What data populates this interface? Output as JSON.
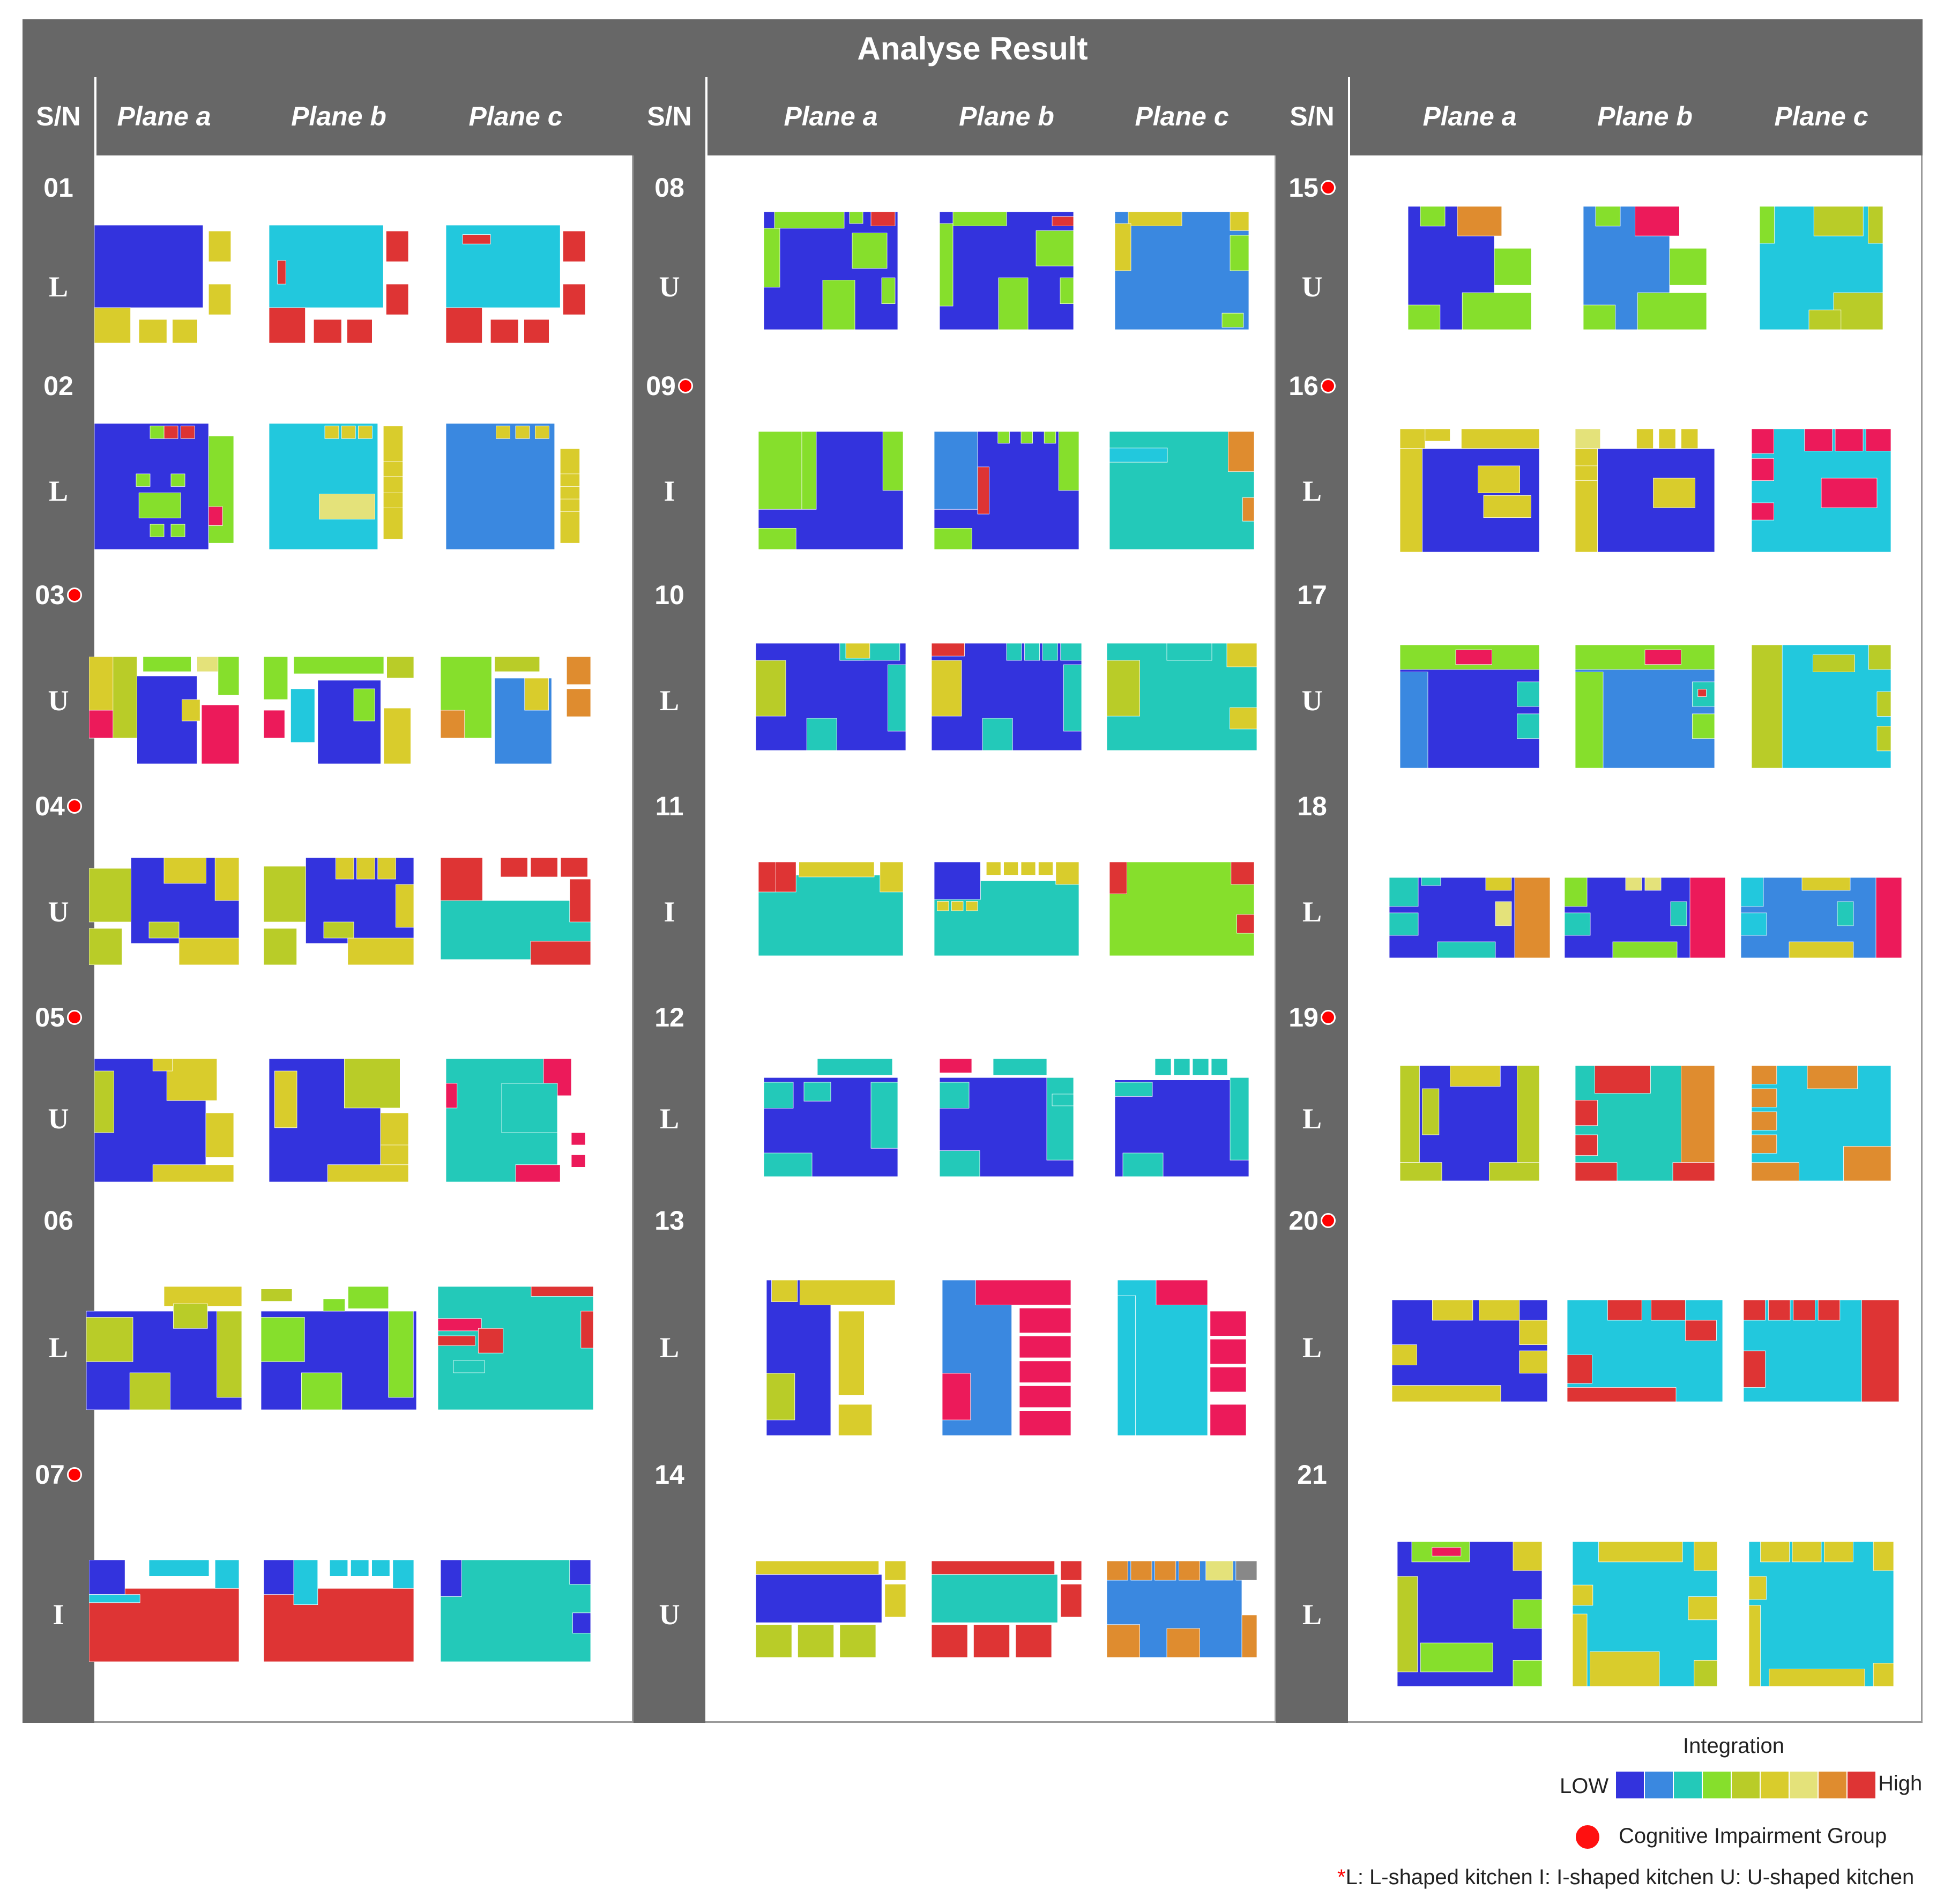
{
  "title": "Analyse Result",
  "headers": {
    "sn": "S/N",
    "plane_a": "Plane a",
    "plane_b": "Plane b",
    "plane_c": "Plane c"
  },
  "colors": {
    "frame": "#676767",
    "scale": [
      "#3333dd",
      "#3a88e0",
      "#23c9b9",
      "#86df2c",
      "#b9cc28",
      "#d9cc2c",
      "#e4e27a",
      "#df8c2f",
      "#de3434"
    ],
    "c1": "#3333dd",
    "c2": "#3a88e0",
    "c3": "#23c9b9",
    "c3b": "#22c8dd",
    "c4": "#86df2c",
    "c5": "#b9cc28",
    "c6": "#d9cc2c",
    "c7": "#e4e27a",
    "c8": "#df8c2f",
    "c9": "#de3434",
    "pink": "#ec1a5a",
    "green2": "#2bd680",
    "gray": "#888888"
  },
  "rows": [
    {
      "id": "01",
      "type": "L",
      "ci": false
    },
    {
      "id": "02",
      "type": "L",
      "ci": false
    },
    {
      "id": "03",
      "type": "U",
      "ci": true
    },
    {
      "id": "04",
      "type": "U",
      "ci": true
    },
    {
      "id": "05",
      "type": "U",
      "ci": true
    },
    {
      "id": "06",
      "type": "L",
      "ci": false
    },
    {
      "id": "07",
      "type": "I",
      "ci": true
    },
    {
      "id": "08",
      "type": "U",
      "ci": false
    },
    {
      "id": "09",
      "type": "I",
      "ci": true
    },
    {
      "id": "10",
      "type": "L",
      "ci": false
    },
    {
      "id": "11",
      "type": "I",
      "ci": false
    },
    {
      "id": "12",
      "type": "L",
      "ci": false
    },
    {
      "id": "13",
      "type": "L",
      "ci": false
    },
    {
      "id": "14",
      "type": "U",
      "ci": false
    },
    {
      "id": "15",
      "type": "U",
      "ci": true
    },
    {
      "id": "16",
      "type": "L",
      "ci": true
    },
    {
      "id": "17",
      "type": "U",
      "ci": false
    },
    {
      "id": "18",
      "type": "L",
      "ci": false
    },
    {
      "id": "19",
      "type": "L",
      "ci": true
    },
    {
      "id": "20",
      "type": "L",
      "ci": true
    },
    {
      "id": "21",
      "type": "L",
      "ci": false
    }
  ],
  "legend": {
    "title": "Integration",
    "low": "LOW",
    "high": "High",
    "ci_label": "Cognitive  Impairment Group",
    "note_star": "*",
    "note": "L: L-shaped kitchen I: I-shaped kitchen  U: U-shaped kitchen"
  }
}
